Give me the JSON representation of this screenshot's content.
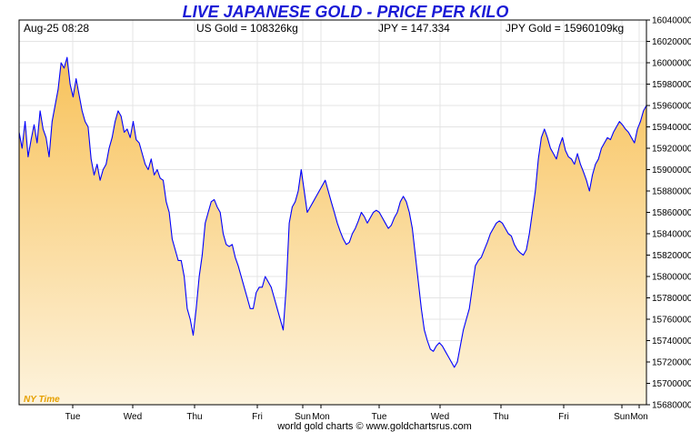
{
  "header": {
    "title": "LIVE JAPANESE GOLD - PRICE PER KILO",
    "date_time": "Aug-25  08:28",
    "us_gold": "US Gold = 108326kg",
    "jpy_rate": "JPY = 147.334",
    "jpy_gold": "JPY Gold = 15960109kg"
  },
  "watermark": "NY Time",
  "footer": "world gold charts © www.goldchartsrus.com",
  "colors": {
    "line": "#0000ff",
    "fill_top": "#f8c25a",
    "fill_bottom": "#fdf3dd",
    "grid": "#e4e4e4",
    "title": "#1a1ad6",
    "watermark": "#e6a000"
  },
  "chart_data": {
    "type": "area",
    "ylim": [
      15680000,
      16040000
    ],
    "y_ticks": [
      "15680000",
      "15700000",
      "15720000",
      "15740000",
      "15760000",
      "15780000",
      "15800000",
      "15820000",
      "15840000",
      "15860000",
      "15880000",
      "15900000",
      "15920000",
      "15940000",
      "15960000",
      "15980000",
      "16000000",
      "16020000",
      "16040000"
    ],
    "x_ticks": [
      "Tue",
      "Wed",
      "Thu",
      "Fri",
      "Sun",
      "Mon",
      "Tue",
      "Wed",
      "Thu",
      "Fri",
      "Sun",
      "Mon"
    ],
    "grid": true,
    "series": [
      {
        "values": [
          15935000,
          15920000,
          15945000,
          15912000,
          15928000,
          15942000,
          15925000,
          15955000,
          15938000,
          15930000,
          15912000,
          15945000,
          15960000,
          15975000,
          16000000,
          15995000,
          16005000,
          15980000,
          15968000,
          15985000,
          15970000,
          15955000,
          15945000,
          15940000,
          15910000,
          15895000,
          15905000,
          15890000,
          15900000,
          15905000,
          15920000,
          15930000,
          15945000,
          15955000,
          15950000,
          15935000,
          15938000,
          15930000,
          15945000,
          15928000,
          15925000,
          15915000,
          15905000,
          15900000,
          15910000,
          15895000,
          15900000,
          15892000,
          15890000,
          15870000,
          15860000,
          15835000,
          15825000,
          15815000,
          15815000,
          15800000,
          15770000,
          15760000,
          15745000,
          15770000,
          15800000,
          15820000,
          15850000,
          15860000,
          15870000,
          15872000,
          15865000,
          15860000,
          15840000,
          15830000,
          15828000,
          15830000,
          15818000,
          15810000,
          15800000,
          15790000,
          15780000,
          15770000,
          15770000,
          15785000,
          15790000,
          15790000,
          15800000,
          15795000,
          15790000,
          15780000,
          15770000,
          15760000,
          15750000,
          15790000,
          15850000,
          15865000,
          15870000,
          15880000,
          15900000,
          15880000,
          15860000,
          15865000,
          15870000,
          15875000,
          15880000,
          15885000,
          15890000,
          15880000,
          15870000,
          15860000,
          15850000,
          15842000,
          15835000,
          15830000,
          15832000,
          15840000,
          15845000,
          15852000,
          15860000,
          15856000,
          15850000,
          15855000,
          15860000,
          15862000,
          15860000,
          15855000,
          15850000,
          15845000,
          15848000,
          15855000,
          15860000,
          15870000,
          15875000,
          15870000,
          15860000,
          15845000,
          15820000,
          15795000,
          15770000,
          15750000,
          15740000,
          15732000,
          15730000,
          15735000,
          15738000,
          15735000,
          15730000,
          15725000,
          15720000,
          15715000,
          15720000,
          15735000,
          15750000,
          15760000,
          15770000,
          15790000,
          15810000,
          15815000,
          15818000,
          15825000,
          15832000,
          15840000,
          15845000,
          15850000,
          15852000,
          15850000,
          15845000,
          15840000,
          15838000,
          15830000,
          15825000,
          15822000,
          15820000,
          15825000,
          15840000,
          15860000,
          15880000,
          15910000,
          15930000,
          15938000,
          15930000,
          15920000,
          15915000,
          15910000,
          15922000,
          15930000,
          15918000,
          15912000,
          15910000,
          15905000,
          15915000,
          15905000,
          15898000,
          15890000,
          15880000,
          15895000,
          15905000,
          15910000,
          15920000,
          15925000,
          15930000,
          15928000,
          15935000,
          15940000,
          15945000,
          15942000,
          15938000,
          15935000,
          15930000,
          15925000,
          15938000,
          15945000,
          15955000,
          15960000
        ]
      }
    ]
  }
}
